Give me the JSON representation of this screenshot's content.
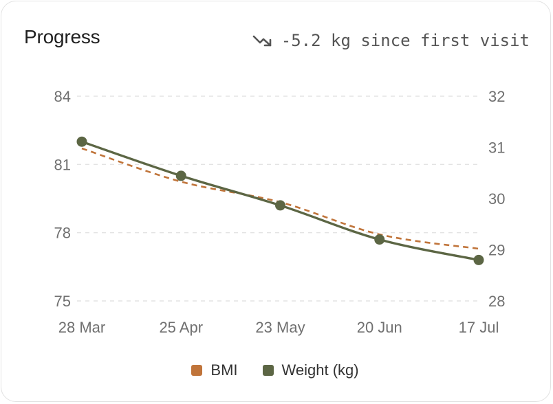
{
  "card": {
    "title": "Progress",
    "summary_icon": "trending-down-icon",
    "summary_text": "-5.2 kg since first visit"
  },
  "colors": {
    "weight": "#5c6644",
    "bmi": "#c0743a",
    "grid": "#e3e3e3",
    "text": "#707070"
  },
  "chart_data": {
    "type": "line",
    "x": [
      "28 Mar",
      "25 Apr",
      "23 May",
      "20 Jun",
      "17 Jul"
    ],
    "series": [
      {
        "name": "Weight (kg)",
        "axis": "left",
        "style": "solid",
        "markers": true,
        "values": [
          82.0,
          80.5,
          79.2,
          77.7,
          76.8
        ]
      },
      {
        "name": "BMI",
        "axis": "right",
        "style": "dashed",
        "markers": false,
        "values": [
          30.98,
          30.33,
          29.93,
          29.3,
          29.02
        ]
      }
    ],
    "y_left": {
      "ticks": [
        75,
        78,
        81,
        84
      ],
      "range": [
        75,
        84
      ]
    },
    "y_right": {
      "ticks": [
        28,
        29,
        30,
        31,
        32
      ],
      "range": [
        28,
        32
      ]
    },
    "grid": true,
    "legend_position": "bottom",
    "legend": [
      "BMI",
      "Weight (kg)"
    ]
  }
}
